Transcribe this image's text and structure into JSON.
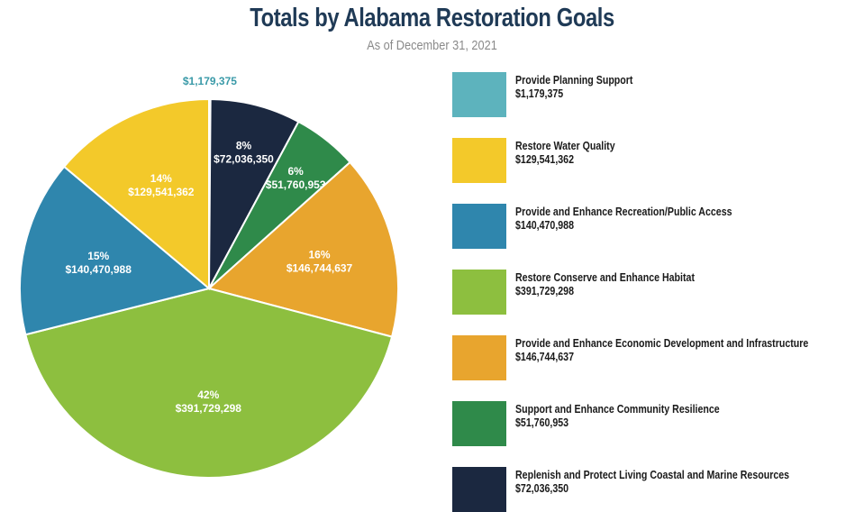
{
  "chart_data": {
    "type": "pie",
    "title": "Totals by Alabama Restoration Goals",
    "subtitle": "As of December 31, 2021",
    "slices": [
      {
        "name": "Provide Planning Support",
        "value": 1179375,
        "value_label": "$1,179,375",
        "percent_label": "",
        "color": "#5db3bd"
      },
      {
        "name": "Replenish and Protect Living Coastal and Marine Resources",
        "value": 72036350,
        "value_label": "$72,036,350",
        "percent_label": "8%",
        "color": "#1b2840"
      },
      {
        "name": "Support and Enhance Community Resilience",
        "value": 51760953,
        "value_label": "$51,760,953",
        "percent_label": "6%",
        "color": "#2f8a4a"
      },
      {
        "name": "Provide and Enhance Economic Development and Infrastructure",
        "value": 146744637,
        "value_label": "$146,744,637",
        "percent_label": "16%",
        "color": "#e8a52e"
      },
      {
        "name": "Restore Conserve and Enhance Habitat",
        "value": 391729298,
        "value_label": "$391,729,298",
        "percent_label": "42%",
        "color": "#8dbf3f"
      },
      {
        "name": "Provide and Enhance Recreation/Public Access",
        "value": 140470988,
        "value_label": "$140,470,988",
        "percent_label": "15%",
        "color": "#2f86ad"
      },
      {
        "name": "Restore Water Quality",
        "value": 129541362,
        "value_label": "$129,541,362",
        "percent_label": "14%",
        "color": "#f3c92a"
      }
    ],
    "legend": {
      "placement": "right",
      "items": [
        {
          "name": "Provide Planning Support",
          "value_label": "$1,179,375",
          "color": "#5db3bd"
        },
        {
          "name": "Restore Water Quality",
          "value_label": "$129,541,362",
          "color": "#f3c92a"
        },
        {
          "name": "Provide and Enhance Recreation/Public Access",
          "value_label": "$140,470,988",
          "color": "#2f86ad"
        },
        {
          "name": "Restore Conserve and Enhance Habitat",
          "value_label": "$391,729,298",
          "color": "#8dbf3f"
        },
        {
          "name": "Provide and Enhance Economic Development and Infrastructure",
          "value_label": "$146,744,637",
          "color": "#e8a52e"
        },
        {
          "name": "Support and Enhance Community Resilience",
          "value_label": "$51,760,953",
          "color": "#2f8a4a"
        },
        {
          "name": "Replenish and Protect Living Coastal and Marine Resources",
          "value_label": "$72,036,350",
          "color": "#1b2840"
        }
      ]
    },
    "outside_label_color": "#3a9aa8"
  }
}
